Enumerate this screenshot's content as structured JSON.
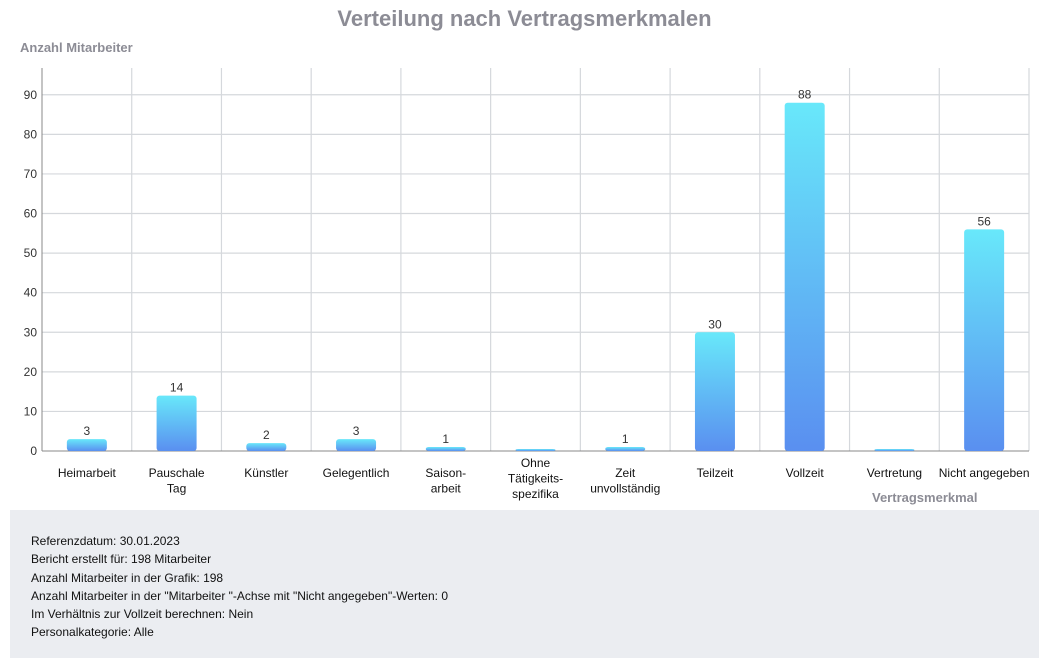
{
  "chart_data": {
    "type": "bar",
    "title": "Verteilung nach Vertragsmerkmalen",
    "ylabel": "Anzahl Mitarbeiter",
    "xlabel": "Vertragsmerkmal",
    "ylim": [
      0,
      97
    ],
    "yticks": [
      0,
      10,
      20,
      30,
      40,
      50,
      60,
      70,
      80,
      90
    ],
    "grid": true,
    "categories": [
      [
        "Heimarbeit"
      ],
      [
        "Pauschale",
        "Tag"
      ],
      [
        "Künstler"
      ],
      [
        "Gelegentlich"
      ],
      [
        "Saison-",
        "arbeit"
      ],
      [
        "Ohne",
        "Tätigkeits-",
        "spezifika"
      ],
      [
        "Zeit",
        "unvollständig"
      ],
      [
        "Teilzeit"
      ],
      [
        "Vollzeit"
      ],
      [
        "Vertretung"
      ],
      [
        "Nicht angegeben"
      ]
    ],
    "values": [
      3,
      14,
      2,
      3,
      1,
      0,
      1,
      30,
      88,
      0,
      56
    ],
    "data_labels": [
      "3",
      "14",
      "2",
      "3",
      "1",
      "",
      "1",
      "30",
      "88",
      "",
      "56"
    ],
    "colors": {
      "bar_top": "#68e8fa",
      "bar_bottom": "#5a8ff0",
      "grid": "#d5d8dc",
      "axis": "#888888"
    }
  },
  "info": {
    "lines": [
      "Referenzdatum: 30.01.2023",
      "Bericht erstellt für: 198 Mitarbeiter",
      "Anzahl Mitarbeiter in der Grafik: 198",
      "Anzahl Mitarbeiter in der \"Mitarbeiter \"-Achse mit \"Nicht angegeben\"-Werten: 0",
      "Im Verhältnis zur Vollzeit berechnen: Nein",
      "Personalkategorie: Alle"
    ]
  }
}
